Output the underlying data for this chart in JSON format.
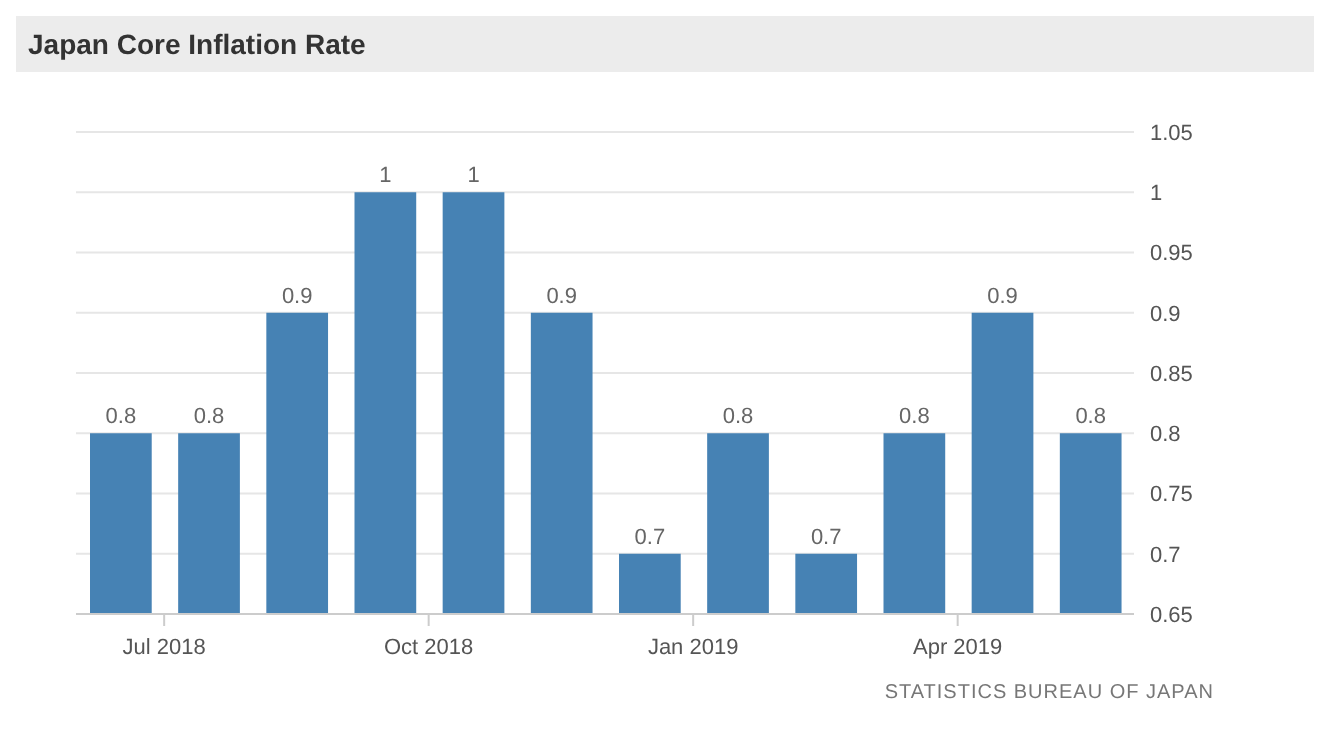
{
  "chart_data": {
    "type": "bar",
    "title": "Japan Core Inflation Rate",
    "categories": [
      null,
      "Jul 2018",
      null,
      null,
      "Oct 2018",
      null,
      null,
      "Jan 2019",
      null,
      null,
      "Apr 2019",
      null
    ],
    "values": [
      0.8,
      0.8,
      0.9,
      1,
      1,
      0.9,
      0.7,
      0.8,
      0.7,
      0.8,
      0.9,
      0.8
    ],
    "color": "#4682b4",
    "ylim": [
      0.65,
      1.05
    ],
    "yticks": [
      0.65,
      0.7,
      0.75,
      0.8,
      0.85,
      0.9,
      0.95,
      1,
      1.05
    ],
    "grid": "y",
    "data_labels": true,
    "annotations": [
      "STATISTICS BUREAU OF JAPAN"
    ]
  }
}
